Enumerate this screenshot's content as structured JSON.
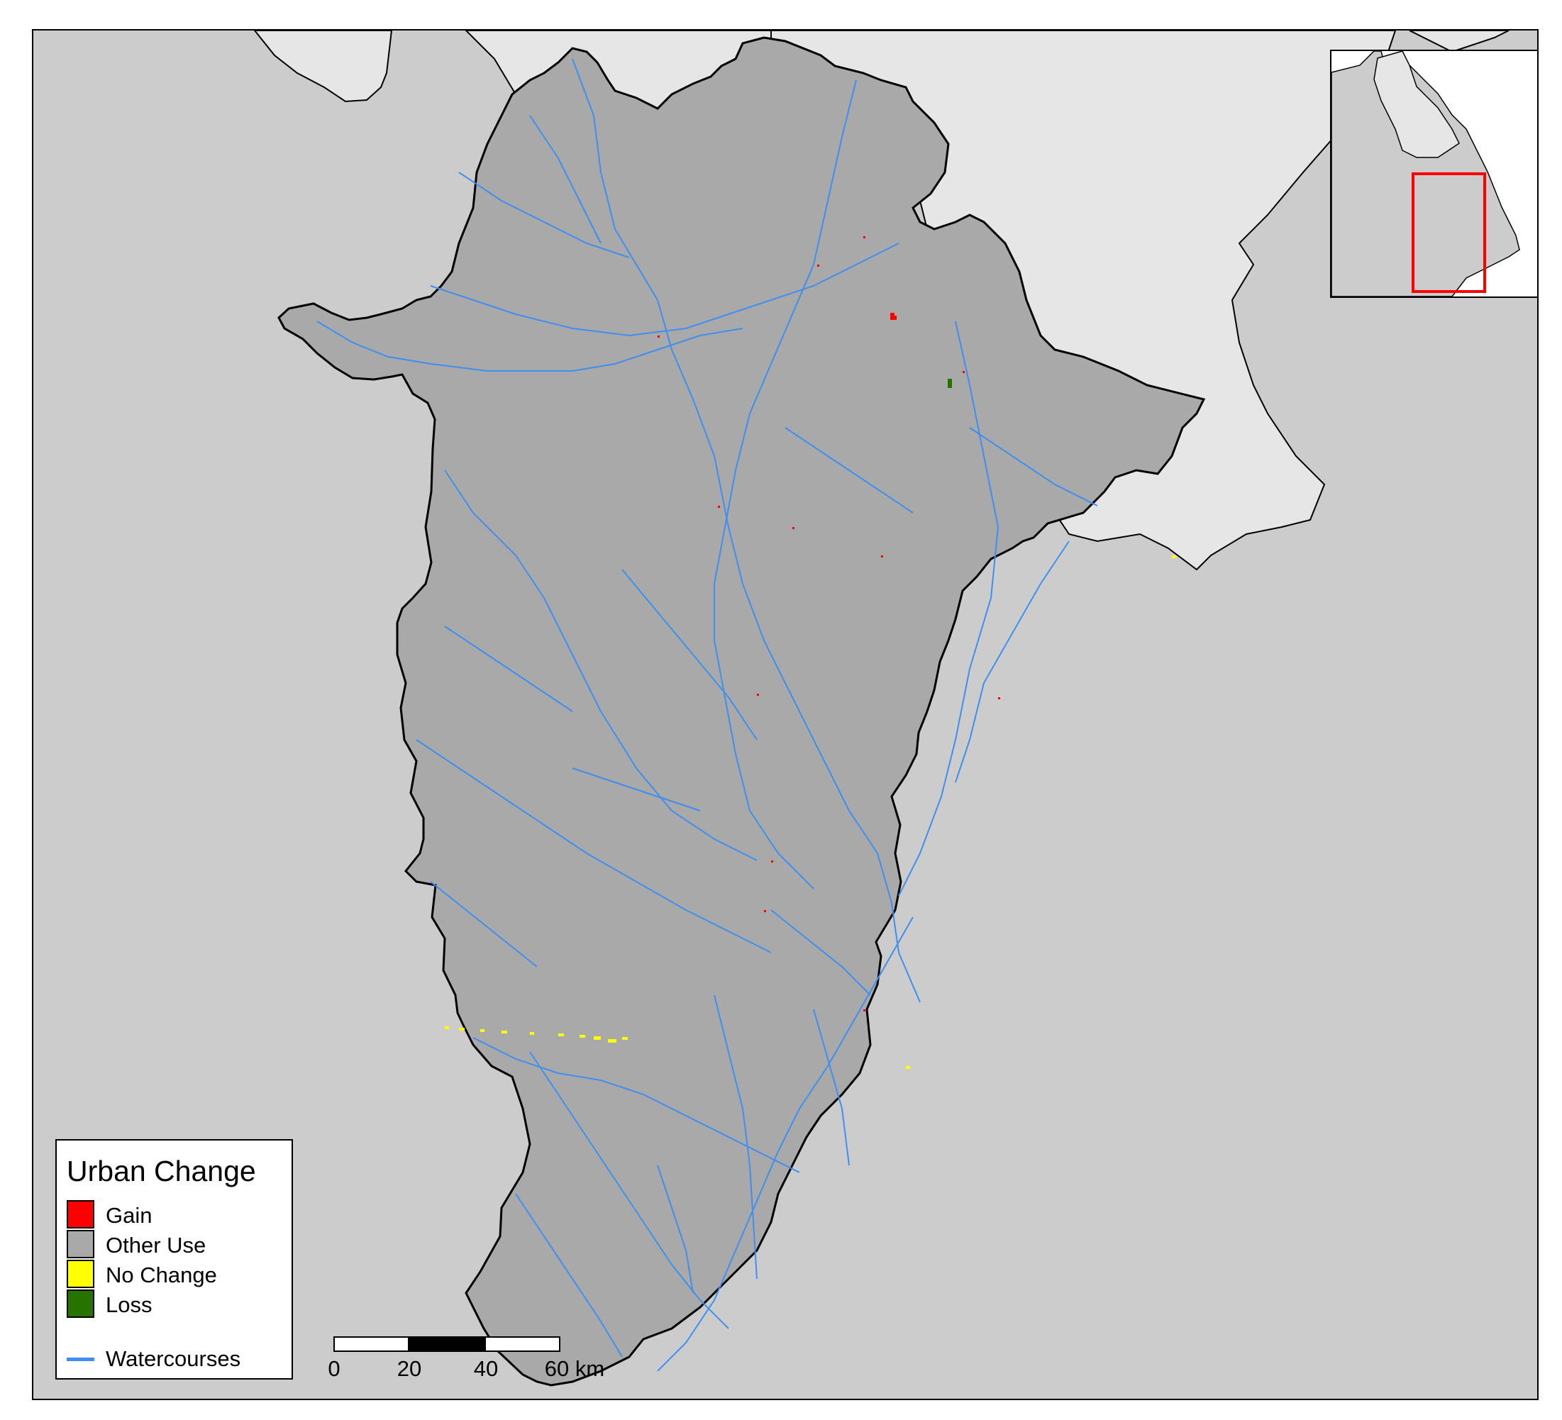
{
  "legend": {
    "title": "Urban Change",
    "items": [
      {
        "label": "Gain",
        "color": "#ff0000"
      },
      {
        "label": "Other Use",
        "color": "#a9a9a9"
      },
      {
        "label": "No Change",
        "color": "#ffff00"
      },
      {
        "label": "Loss",
        "color": "#267300"
      }
    ],
    "watercourses_label": "Watercourses",
    "watercourses_color": "#3f8ff0"
  },
  "scalebar": {
    "ticks": [
      "0",
      "20",
      "40",
      "60 km"
    ]
  },
  "colors": {
    "basin": "#a9a9a9",
    "background_land": "#cccccc",
    "neighbor_region": "#e6e6e6",
    "boundary": "#000000",
    "inset_highlight": "#ff0000"
  }
}
